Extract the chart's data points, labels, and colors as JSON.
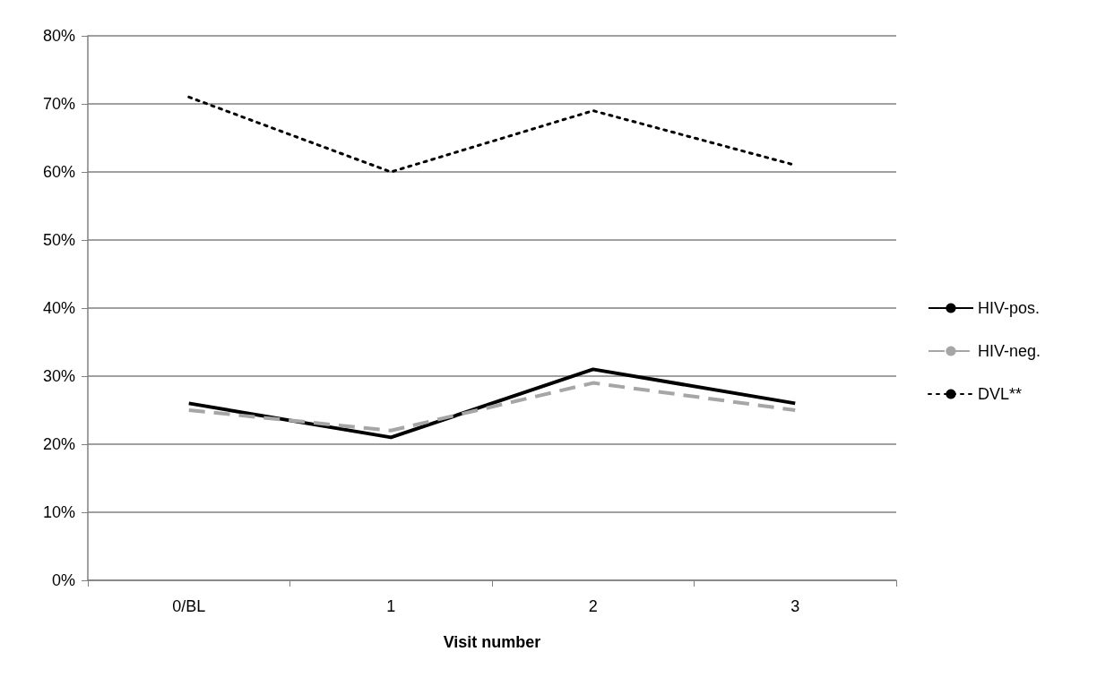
{
  "chart_data": {
    "type": "line",
    "xlabel": "Visit number",
    "categories": [
      "0/BL",
      "1",
      "2",
      "3"
    ],
    "series": [
      {
        "name": "HIV-pos.",
        "color": "#000000",
        "line_style": "solid",
        "values": [
          26,
          21,
          31,
          26
        ]
      },
      {
        "name": "HIV-neg.",
        "color": "#a6a6a6",
        "line_style": "dashed",
        "values": [
          25,
          22,
          29,
          25
        ]
      },
      {
        "name": "DVL**",
        "color": "#000000",
        "line_style": "dotted",
        "values": [
          71,
          60,
          69,
          61
        ]
      }
    ],
    "ylim": [
      0,
      80
    ],
    "yticks": [
      {
        "value": 0,
        "label": "0%"
      },
      {
        "value": 10,
        "label": "10%"
      },
      {
        "value": 20,
        "label": "20%"
      },
      {
        "value": 30,
        "label": "30%"
      },
      {
        "value": 40,
        "label": "40%"
      },
      {
        "value": 50,
        "label": "50%"
      },
      {
        "value": 60,
        "label": "60%"
      },
      {
        "value": 70,
        "label": "70%"
      },
      {
        "value": 80,
        "label": "80%"
      }
    ],
    "grid": "y",
    "legend": "right",
    "marker": "none"
  }
}
